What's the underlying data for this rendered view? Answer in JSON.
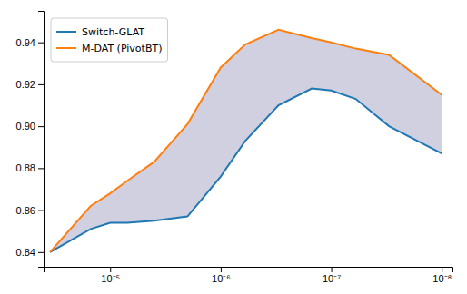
{
  "chart_data": {
    "type": "line",
    "x": [
      3.5e-05,
      1.5e-05,
      1e-05,
      7e-06,
      4e-06,
      2e-06,
      1e-06,
      6e-07,
      3e-07,
      1.5e-07,
      1e-07,
      6e-08,
      3e-08,
      1e-08
    ],
    "series": [
      {
        "name": "Switch-GLAT",
        "color": "#1f77b4",
        "values": [
          0.84,
          0.851,
          0.854,
          0.854,
          0.855,
          0.857,
          0.876,
          0.893,
          0.91,
          0.918,
          0.917,
          0.913,
          0.9,
          0.887
        ]
      },
      {
        "name": "M-DAT (PivotBT)",
        "color": "#ff7f0e",
        "values": [
          0.84,
          0.862,
          0.868,
          0.874,
          0.883,
          0.901,
          0.928,
          0.939,
          0.946,
          0.942,
          0.94,
          0.937,
          0.934,
          0.915
        ]
      }
    ],
    "color": "#d0d0e0",
    "log": "x",
    "xlim": [
      4e-05,
      8e-09
    ],
    "xticks": [
      {
        "value": 1e-05,
        "label": "10⁻⁵"
      },
      {
        "value": 1e-06,
        "label": "10⁻⁶"
      },
      {
        "value": 1e-07,
        "label": "10⁻⁷"
      },
      {
        "value": 1e-08,
        "label": "10⁻⁸"
      }
    ],
    "ylim": [
      0.833,
      0.955
    ],
    "yticks": [
      0.84,
      0.86,
      0.88,
      {
        "value": 0.9,
        "label": "0.90"
      },
      0.92,
      0.94
    ],
    "grid": false,
    "legend": "upper-left"
  }
}
